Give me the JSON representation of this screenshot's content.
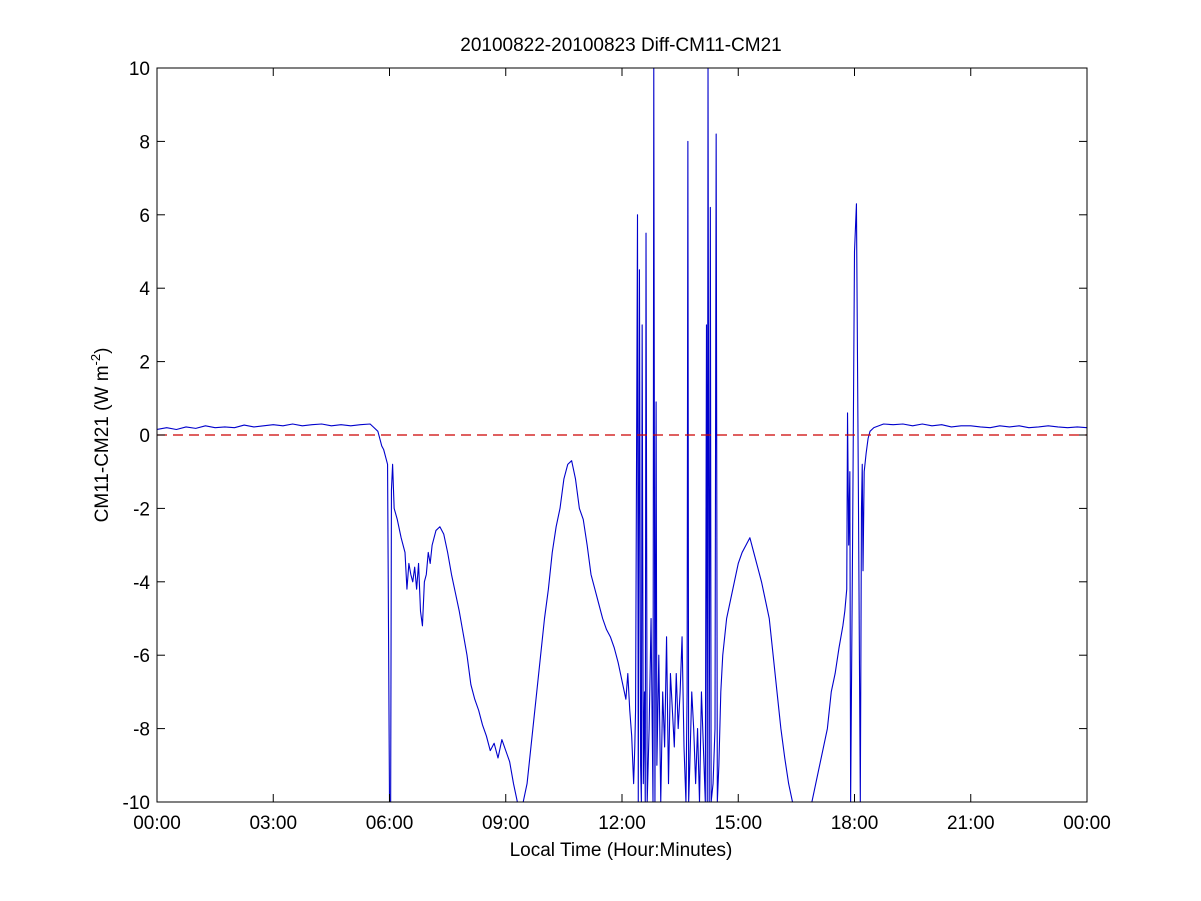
{
  "chart_data": {
    "type": "line",
    "title": "20100822-20100823 Diff-CM11-CM21",
    "xlabel": "Local Time (Hour:Minutes)",
    "ylabel_main": "CM11-CM21 (W m",
    "ylabel_sup": "-2",
    "ylabel_close": ")",
    "xlim": [
      0,
      24
    ],
    "ylim": [
      -10,
      10
    ],
    "grid": false,
    "x_ticks": [
      {
        "value": 0,
        "label": "00:00"
      },
      {
        "value": 3,
        "label": "03:00"
      },
      {
        "value": 6,
        "label": "06:00"
      },
      {
        "value": 9,
        "label": "09:00"
      },
      {
        "value": 12,
        "label": "12:00"
      },
      {
        "value": 15,
        "label": "15:00"
      },
      {
        "value": 18,
        "label": "18:00"
      },
      {
        "value": 21,
        "label": "21:00"
      },
      {
        "value": 24,
        "label": "00:00"
      }
    ],
    "y_ticks": [
      {
        "value": 10,
        "label": "10"
      },
      {
        "value": 8,
        "label": "8"
      },
      {
        "value": 6,
        "label": "6"
      },
      {
        "value": 4,
        "label": "4"
      },
      {
        "value": 2,
        "label": "2"
      },
      {
        "value": 0,
        "label": "0"
      },
      {
        "value": -2,
        "label": "-2"
      },
      {
        "value": -4,
        "label": "-4"
      },
      {
        "value": -6,
        "label": "-6"
      },
      {
        "value": -8,
        "label": "-8"
      },
      {
        "value": -10,
        "label": "-10"
      }
    ],
    "reference_line": {
      "y": 0,
      "color": "#cc0000",
      "style": "dashed"
    },
    "series": [
      {
        "color": "#0000cc",
        "points": [
          [
            0.0,
            0.15
          ],
          [
            0.25,
            0.2
          ],
          [
            0.5,
            0.15
          ],
          [
            0.75,
            0.22
          ],
          [
            1.0,
            0.18
          ],
          [
            1.25,
            0.25
          ],
          [
            1.5,
            0.2
          ],
          [
            1.75,
            0.22
          ],
          [
            2.0,
            0.2
          ],
          [
            2.25,
            0.27
          ],
          [
            2.5,
            0.22
          ],
          [
            2.75,
            0.25
          ],
          [
            3.0,
            0.28
          ],
          [
            3.25,
            0.25
          ],
          [
            3.5,
            0.3
          ],
          [
            3.75,
            0.25
          ],
          [
            4.0,
            0.28
          ],
          [
            4.25,
            0.3
          ],
          [
            4.5,
            0.25
          ],
          [
            4.75,
            0.28
          ],
          [
            5.0,
            0.25
          ],
          [
            5.25,
            0.28
          ],
          [
            5.5,
            0.3
          ],
          [
            5.6,
            0.2
          ],
          [
            5.7,
            0.1
          ],
          [
            5.75,
            -0.1
          ],
          [
            5.8,
            -0.3
          ],
          [
            5.85,
            -0.4
          ],
          [
            5.9,
            -0.6
          ],
          [
            5.95,
            -0.8
          ],
          [
            6.0,
            -10
          ],
          [
            6.03,
            -10
          ],
          [
            6.05,
            -1.5
          ],
          [
            6.08,
            -0.8
          ],
          [
            6.12,
            -2.0
          ],
          [
            6.2,
            -2.3
          ],
          [
            6.3,
            -2.8
          ],
          [
            6.4,
            -3.2
          ],
          [
            6.45,
            -4.2
          ],
          [
            6.5,
            -3.5
          ],
          [
            6.55,
            -3.8
          ],
          [
            6.6,
            -4.0
          ],
          [
            6.65,
            -3.6
          ],
          [
            6.7,
            -4.2
          ],
          [
            6.75,
            -3.5
          ],
          [
            6.8,
            -4.8
          ],
          [
            6.85,
            -5.2
          ],
          [
            6.9,
            -4.0
          ],
          [
            6.95,
            -3.8
          ],
          [
            7.0,
            -3.2
          ],
          [
            7.05,
            -3.5
          ],
          [
            7.1,
            -3.0
          ],
          [
            7.15,
            -2.8
          ],
          [
            7.2,
            -2.6
          ],
          [
            7.3,
            -2.5
          ],
          [
            7.4,
            -2.7
          ],
          [
            7.5,
            -3.2
          ],
          [
            7.6,
            -3.8
          ],
          [
            7.7,
            -4.3
          ],
          [
            7.8,
            -4.8
          ],
          [
            7.9,
            -5.4
          ],
          [
            8.0,
            -6.0
          ],
          [
            8.1,
            -6.8
          ],
          [
            8.2,
            -7.2
          ],
          [
            8.3,
            -7.5
          ],
          [
            8.4,
            -7.9
          ],
          [
            8.5,
            -8.2
          ],
          [
            8.6,
            -8.6
          ],
          [
            8.7,
            -8.4
          ],
          [
            8.8,
            -8.8
          ],
          [
            8.9,
            -8.3
          ],
          [
            9.0,
            -8.6
          ],
          [
            9.1,
            -8.9
          ],
          [
            9.2,
            -9.5
          ],
          [
            9.3,
            -10
          ],
          [
            9.45,
            -10
          ],
          [
            9.55,
            -9.5
          ],
          [
            9.6,
            -9.0
          ],
          [
            9.7,
            -8.0
          ],
          [
            9.8,
            -7.0
          ],
          [
            9.9,
            -6.0
          ],
          [
            10.0,
            -5.0
          ],
          [
            10.1,
            -4.2
          ],
          [
            10.2,
            -3.2
          ],
          [
            10.3,
            -2.5
          ],
          [
            10.4,
            -2.0
          ],
          [
            10.5,
            -1.2
          ],
          [
            10.6,
            -0.8
          ],
          [
            10.7,
            -0.7
          ],
          [
            10.8,
            -1.2
          ],
          [
            10.9,
            -2.0
          ],
          [
            11.0,
            -2.3
          ],
          [
            11.1,
            -3.0
          ],
          [
            11.2,
            -3.8
          ],
          [
            11.3,
            -4.2
          ],
          [
            11.4,
            -4.6
          ],
          [
            11.5,
            -5.0
          ],
          [
            11.6,
            -5.3
          ],
          [
            11.7,
            -5.5
          ],
          [
            11.8,
            -5.8
          ],
          [
            11.9,
            -6.2
          ],
          [
            12.0,
            -6.7
          ],
          [
            12.1,
            -7.2
          ],
          [
            12.15,
            -6.5
          ],
          [
            12.2,
            -7.5
          ],
          [
            12.25,
            -8.2
          ],
          [
            12.3,
            -9.5
          ],
          [
            12.33,
            -8.5
          ],
          [
            12.35,
            -7.5
          ],
          [
            12.4,
            6.0
          ],
          [
            12.42,
            -10
          ],
          [
            12.45,
            4.5
          ],
          [
            12.48,
            -9.0
          ],
          [
            12.5,
            -10
          ],
          [
            12.52,
            3.0
          ],
          [
            12.55,
            -9.5
          ],
          [
            12.58,
            -7.0
          ],
          [
            12.6,
            -10
          ],
          [
            12.62,
            5.5
          ],
          [
            12.65,
            -10
          ],
          [
            12.7,
            -8.0
          ],
          [
            12.75,
            -5.0
          ],
          [
            12.8,
            -10
          ],
          [
            12.82,
            10
          ],
          [
            12.85,
            -10
          ],
          [
            12.88,
            0.9
          ],
          [
            12.9,
            -9.0
          ],
          [
            12.95,
            -6.0
          ],
          [
            13.0,
            -10
          ],
          [
            13.05,
            -7.0
          ],
          [
            13.1,
            -8.5
          ],
          [
            13.15,
            -5.5
          ],
          [
            13.2,
            -9.5
          ],
          [
            13.25,
            -6.5
          ],
          [
            13.3,
            -7.5
          ],
          [
            13.35,
            -8.5
          ],
          [
            13.4,
            -6.5
          ],
          [
            13.45,
            -8.0
          ],
          [
            13.5,
            -7.0
          ],
          [
            13.55,
            -5.5
          ],
          [
            13.6,
            -8.5
          ],
          [
            13.65,
            -10
          ],
          [
            13.68,
            -7.0
          ],
          [
            13.7,
            8.0
          ],
          [
            13.72,
            -10
          ],
          [
            13.75,
            -9.0
          ],
          [
            13.8,
            -7.0
          ],
          [
            13.85,
            -8.0
          ],
          [
            13.9,
            -9.5
          ],
          [
            13.95,
            -8.0
          ],
          [
            14.0,
            -10
          ],
          [
            14.05,
            -7.0
          ],
          [
            14.1,
            -8.5
          ],
          [
            14.15,
            -10
          ],
          [
            14.18,
            3.0
          ],
          [
            14.2,
            -10
          ],
          [
            14.22,
            10
          ],
          [
            14.25,
            -10
          ],
          [
            14.28,
            6.2
          ],
          [
            14.3,
            -10
          ],
          [
            14.35,
            -9.5
          ],
          [
            14.4,
            -8.0
          ],
          [
            14.43,
            8.2
          ],
          [
            14.46,
            -10
          ],
          [
            14.5,
            -9.0
          ],
          [
            14.55,
            -7.0
          ],
          [
            14.6,
            -6.0
          ],
          [
            14.7,
            -5.0
          ],
          [
            14.8,
            -4.5
          ],
          [
            14.9,
            -4.0
          ],
          [
            15.0,
            -3.5
          ],
          [
            15.1,
            -3.2
          ],
          [
            15.2,
            -3.0
          ],
          [
            15.3,
            -2.8
          ],
          [
            15.4,
            -3.2
          ],
          [
            15.5,
            -3.6
          ],
          [
            15.6,
            -4.0
          ],
          [
            15.7,
            -4.5
          ],
          [
            15.8,
            -5.0
          ],
          [
            15.9,
            -6.0
          ],
          [
            16.0,
            -7.0
          ],
          [
            16.1,
            -8.0
          ],
          [
            16.2,
            -8.8
          ],
          [
            16.3,
            -9.5
          ],
          [
            16.4,
            -10
          ],
          [
            16.9,
            -10
          ],
          [
            17.0,
            -9.5
          ],
          [
            17.1,
            -9.0
          ],
          [
            17.2,
            -8.5
          ],
          [
            17.3,
            -8.0
          ],
          [
            17.4,
            -7.0
          ],
          [
            17.5,
            -6.5
          ],
          [
            17.6,
            -5.8
          ],
          [
            17.7,
            -5.2
          ],
          [
            17.75,
            -4.8
          ],
          [
            17.8,
            -4.2
          ],
          [
            17.82,
            0.6
          ],
          [
            17.85,
            -3.0
          ],
          [
            17.88,
            -1.0
          ],
          [
            17.9,
            -10
          ],
          [
            17.95,
            -3.0
          ],
          [
            18.0,
            5.0
          ],
          [
            18.05,
            6.3
          ],
          [
            18.1,
            -1.5
          ],
          [
            18.15,
            -10
          ],
          [
            18.18,
            -2.0
          ],
          [
            18.2,
            -0.8
          ],
          [
            18.22,
            -3.7
          ],
          [
            18.25,
            -1.0
          ],
          [
            18.3,
            -0.5
          ],
          [
            18.35,
            -0.1
          ],
          [
            18.4,
            0.1
          ],
          [
            18.5,
            0.2
          ],
          [
            18.75,
            0.3
          ],
          [
            19.0,
            0.28
          ],
          [
            19.25,
            0.3
          ],
          [
            19.5,
            0.25
          ],
          [
            19.75,
            0.3
          ],
          [
            20.0,
            0.25
          ],
          [
            20.25,
            0.28
          ],
          [
            20.5,
            0.22
          ],
          [
            20.75,
            0.25
          ],
          [
            21.0,
            0.25
          ],
          [
            21.25,
            0.22
          ],
          [
            21.5,
            0.2
          ],
          [
            21.75,
            0.25
          ],
          [
            22.0,
            0.22
          ],
          [
            22.25,
            0.25
          ],
          [
            22.5,
            0.2
          ],
          [
            22.75,
            0.22
          ],
          [
            23.0,
            0.25
          ],
          [
            23.25,
            0.22
          ],
          [
            23.5,
            0.2
          ],
          [
            23.75,
            0.22
          ],
          [
            24.0,
            0.2
          ]
        ]
      }
    ]
  }
}
